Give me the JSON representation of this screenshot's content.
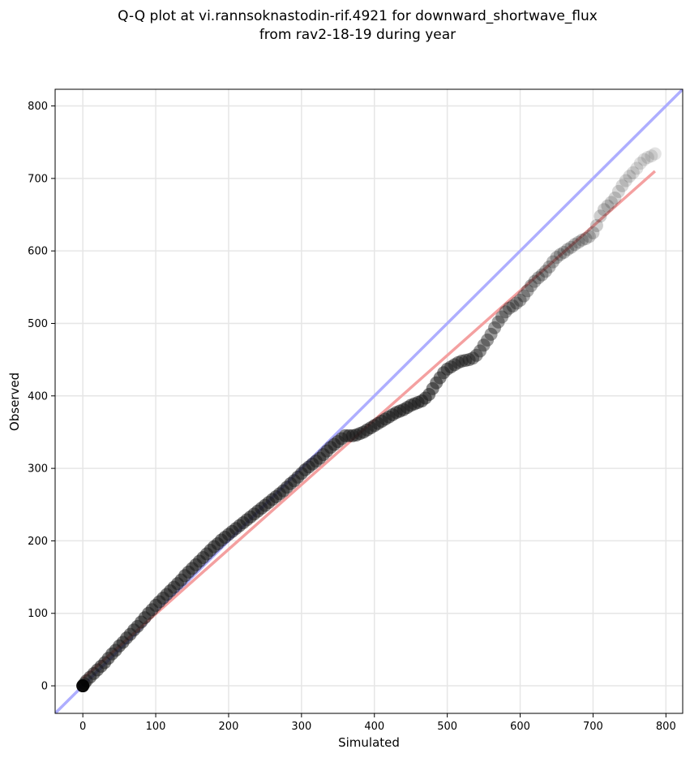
{
  "chart_data": {
    "type": "scatter",
    "title_line1": "Q-Q plot at vi.rannsoknastodin-rif.4921 for downward_shortwave_flux",
    "title_line2": "from rav2-18-19 during year",
    "xlabel": "Simulated",
    "ylabel": "Observed",
    "xlim": [
      -38,
      823
    ],
    "ylim": [
      -38,
      823
    ],
    "xticks": [
      0,
      100,
      200,
      300,
      400,
      500,
      600,
      700,
      800
    ],
    "yticks": [
      0,
      100,
      200,
      300,
      400,
      500,
      600,
      700,
      800
    ],
    "xtick_labels": [
      "0",
      "100",
      "200",
      "300",
      "400",
      "500",
      "600",
      "700",
      "800"
    ],
    "ytick_labels": [
      "0",
      "100",
      "200",
      "300",
      "400",
      "500",
      "600",
      "700",
      "800"
    ],
    "grid": true,
    "identity_line": {
      "color": "#aaaaff",
      "from": [
        -38,
        -38
      ],
      "to": [
        823,
        823
      ]
    },
    "fit_line": {
      "color": "#f4a0a0",
      "from": [
        0,
        10
      ],
      "to": [
        785,
        710
      ]
    },
    "series": [
      {
        "values": [
          [
            0,
            0
          ],
          [
            2,
            3
          ],
          [
            5,
            7
          ],
          [
            10,
            12
          ],
          [
            15,
            17
          ],
          [
            20,
            22
          ],
          [
            25,
            27
          ],
          [
            30,
            32
          ],
          [
            35,
            38
          ],
          [
            40,
            44
          ],
          [
            45,
            49
          ],
          [
            50,
            55
          ],
          [
            55,
            60
          ],
          [
            60,
            66
          ],
          [
            65,
            71
          ],
          [
            70,
            77
          ],
          [
            75,
            82
          ],
          [
            80,
            88
          ],
          [
            85,
            94
          ],
          [
            90,
            100
          ],
          [
            95,
            105
          ],
          [
            100,
            111
          ],
          [
            105,
            116
          ],
          [
            110,
            121
          ],
          [
            115,
            126
          ],
          [
            120,
            131
          ],
          [
            125,
            136
          ],
          [
            130,
            141
          ],
          [
            135,
            146
          ],
          [
            140,
            152
          ],
          [
            145,
            157
          ],
          [
            150,
            162
          ],
          [
            155,
            167
          ],
          [
            160,
            172
          ],
          [
            165,
            177
          ],
          [
            170,
            182
          ],
          [
            175,
            187
          ],
          [
            180,
            192
          ],
          [
            185,
            196
          ],
          [
            190,
            201
          ],
          [
            195,
            205
          ],
          [
            200,
            209
          ],
          [
            205,
            213
          ],
          [
            210,
            217
          ],
          [
            215,
            221
          ],
          [
            220,
            225
          ],
          [
            225,
            229
          ],
          [
            230,
            233
          ],
          [
            235,
            237
          ],
          [
            240,
            241
          ],
          [
            245,
            245
          ],
          [
            250,
            249
          ],
          [
            255,
            253
          ],
          [
            260,
            257
          ],
          [
            265,
            261
          ],
          [
            270,
            265
          ],
          [
            275,
            269
          ],
          [
            280,
            274
          ],
          [
            285,
            279
          ],
          [
            290,
            283
          ],
          [
            295,
            288
          ],
          [
            300,
            293
          ],
          [
            305,
            298
          ],
          [
            310,
            302
          ],
          [
            315,
            306
          ],
          [
            320,
            310
          ],
          [
            325,
            314
          ],
          [
            330,
            319
          ],
          [
            335,
            324
          ],
          [
            340,
            329
          ],
          [
            345,
            333
          ],
          [
            350,
            337
          ],
          [
            355,
            341
          ],
          [
            360,
            345
          ],
          [
            365,
            345
          ],
          [
            370,
            345
          ],
          [
            375,
            346
          ],
          [
            380,
            348
          ],
          [
            385,
            350
          ],
          [
            390,
            353
          ],
          [
            395,
            356
          ],
          [
            400,
            359
          ],
          [
            405,
            362
          ],
          [
            410,
            365
          ],
          [
            415,
            368
          ],
          [
            420,
            371
          ],
          [
            425,
            374
          ],
          [
            430,
            377
          ],
          [
            435,
            379
          ],
          [
            440,
            381
          ],
          [
            445,
            384
          ],
          [
            450,
            387
          ],
          [
            455,
            389
          ],
          [
            460,
            391
          ],
          [
            465,
            393
          ],
          [
            470,
            397
          ],
          [
            475,
            402
          ],
          [
            480,
            410
          ],
          [
            485,
            418
          ],
          [
            490,
            425
          ],
          [
            495,
            432
          ],
          [
            500,
            437
          ],
          [
            505,
            440
          ],
          [
            510,
            443
          ],
          [
            515,
            446
          ],
          [
            520,
            448
          ],
          [
            525,
            449
          ],
          [
            530,
            450
          ],
          [
            535,
            452
          ],
          [
            540,
            456
          ],
          [
            545,
            462
          ],
          [
            550,
            470
          ],
          [
            555,
            477
          ],
          [
            560,
            485
          ],
          [
            565,
            494
          ],
          [
            570,
            502
          ],
          [
            575,
            509
          ],
          [
            580,
            516
          ],
          [
            585,
            521
          ],
          [
            590,
            524
          ],
          [
            595,
            528
          ],
          [
            600,
            532
          ],
          [
            605,
            538
          ],
          [
            610,
            545
          ],
          [
            615,
            552
          ],
          [
            620,
            558
          ],
          [
            625,
            563
          ],
          [
            630,
            567
          ],
          [
            635,
            572
          ],
          [
            640,
            578
          ],
          [
            645,
            585
          ],
          [
            650,
            591
          ],
          [
            655,
            595
          ],
          [
            660,
            598
          ],
          [
            665,
            602
          ],
          [
            670,
            605
          ],
          [
            675,
            609
          ],
          [
            680,
            612
          ],
          [
            685,
            615
          ],
          [
            690,
            617
          ],
          [
            695,
            620
          ],
          [
            700,
            625
          ],
          [
            705,
            635
          ],
          [
            710,
            648
          ],
          [
            715,
            657
          ],
          [
            720,
            662
          ],
          [
            725,
            667
          ],
          [
            730,
            673
          ],
          [
            735,
            682
          ],
          [
            740,
            690
          ],
          [
            745,
            697
          ],
          [
            750,
            703
          ],
          [
            755,
            708
          ],
          [
            760,
            714
          ],
          [
            765,
            721
          ],
          [
            770,
            726
          ],
          [
            775,
            729
          ],
          [
            780,
            731
          ],
          [
            785,
            734
          ]
        ]
      }
    ]
  }
}
